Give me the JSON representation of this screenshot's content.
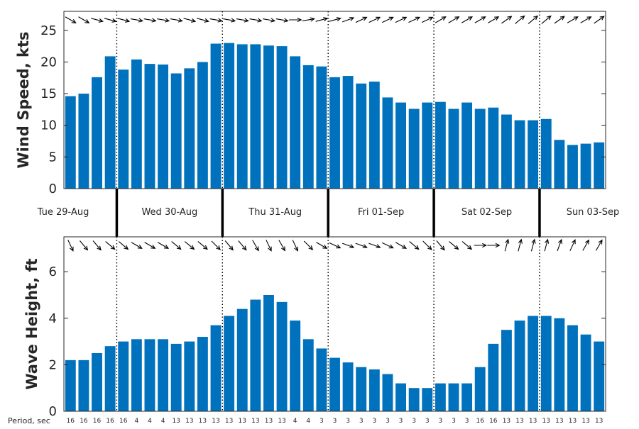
{
  "chart_data": [
    {
      "type": "bar",
      "ylabel": "Wind Speed, kts",
      "ylim": [
        0,
        28
      ],
      "yticks": [
        0,
        5,
        10,
        15,
        20,
        25
      ],
      "color": "#0072bd",
      "values": [
        14.6,
        15.0,
        17.6,
        20.9,
        18.8,
        20.4,
        19.7,
        19.6,
        18.2,
        19.0,
        20.0,
        22.9,
        23.0,
        22.8,
        22.8,
        22.6,
        22.5,
        20.9,
        19.5,
        19.3,
        17.6,
        17.8,
        16.6,
        16.9,
        14.4,
        13.6,
        12.6,
        13.6,
        13.7,
        12.6,
        13.6,
        12.6,
        12.8,
        11.7,
        10.8,
        10.8,
        11.0,
        7.7,
        6.9,
        7.1,
        7.3
      ],
      "direction_arrows": "arrows above bars show wind direction"
    },
    {
      "type": "bar",
      "ylabel": "Wave Height, ft",
      "ylim": [
        0,
        7.5
      ],
      "yticks": [
        0,
        2,
        4,
        6
      ],
      "color": "#0072bd",
      "values": [
        2.2,
        2.2,
        2.5,
        2.8,
        3.0,
        3.1,
        3.1,
        3.1,
        2.9,
        3.0,
        3.2,
        3.7,
        4.1,
        4.4,
        4.8,
        5.0,
        4.7,
        3.9,
        3.1,
        2.7,
        2.3,
        2.1,
        1.9,
        1.8,
        1.6,
        1.2,
        1.0,
        1.0,
        1.2,
        1.2,
        1.2,
        1.9,
        2.9,
        3.5,
        3.9,
        4.1,
        4.1,
        4.0,
        3.7,
        3.3,
        3.0
      ],
      "period_label": "Period, sec",
      "periods": [
        "16",
        "16",
        "16",
        "16",
        "16",
        "4",
        "4",
        "4",
        "13",
        "13",
        "13",
        "13",
        "13",
        "13",
        "13",
        "13",
        "13",
        "4",
        "4",
        "3",
        "3",
        "3",
        "3",
        "3",
        "3",
        "3",
        "3",
        "3",
        "3",
        "3",
        "3",
        "16",
        "16",
        "13",
        "13",
        "13",
        "13",
        "13",
        "13",
        "13",
        "13"
      ]
    }
  ],
  "days": [
    "Tue 29-Aug",
    "Wed 30-Aug",
    "Thu 31-Aug",
    "Fri 01-Sep",
    "Sat 02-Sep",
    "Sun 03-Sep"
  ],
  "day_breaks": [
    4,
    12,
    20,
    28,
    36
  ],
  "wind_directions_deg": [
    300,
    300,
    285,
    285,
    285,
    280,
    280,
    280,
    280,
    285,
    285,
    280,
    280,
    280,
    280,
    280,
    280,
    270,
    260,
    255,
    255,
    250,
    245,
    245,
    245,
    245,
    245,
    245,
    240,
    240,
    240,
    240,
    240,
    235,
    230,
    230,
    230,
    235,
    240,
    240,
    235
  ],
  "wave_directions_deg": [
    335,
    320,
    320,
    310,
    310,
    300,
    300,
    300,
    310,
    310,
    310,
    315,
    320,
    320,
    330,
    335,
    330,
    335,
    315,
    300,
    295,
    290,
    290,
    290,
    295,
    300,
    310,
    315,
    320,
    310,
    310,
    270,
    270,
    195,
    195,
    195,
    195,
    200,
    205,
    210,
    210
  ]
}
